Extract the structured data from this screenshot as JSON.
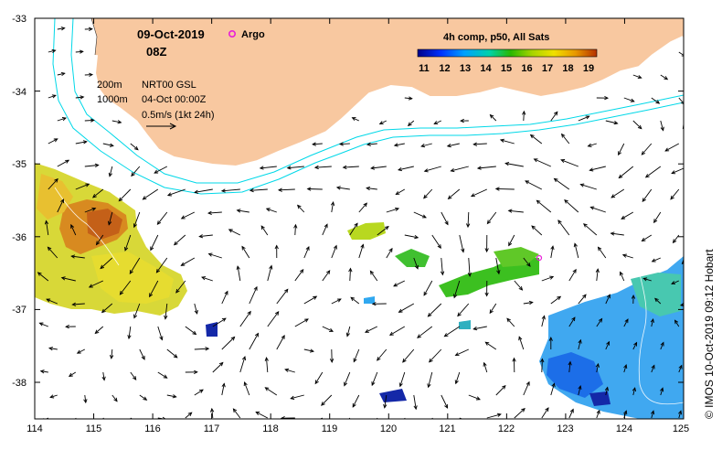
{
  "map": {
    "date": "09-Oct-2019",
    "hour": "08Z",
    "argo_label": "Argo",
    "argo_marker_color": "#e81fd8",
    "legend": {
      "title": "4h comp, p50, All Sats",
      "ticks": [
        "11",
        "12",
        "13",
        "14",
        "15",
        "16",
        "17",
        "18",
        "19"
      ],
      "sst_min": 11,
      "sst_max": 19.5,
      "colors": [
        "#00008a",
        "#0032ff",
        "#00a0ff",
        "#00d2aa",
        "#2ab800",
        "#a8d400",
        "#f0e000",
        "#e89800",
        "#b43000"
      ]
    },
    "contours": {
      "depth_200": "200m",
      "depth_1000": "1000m",
      "contour_color": "#00d8e8"
    },
    "reference": {
      "altimetry": "NRT00 GSL",
      "altimetry_date": "04-Oct 00:00Z",
      "scale_label": "0.5m/s (1kt 24h)"
    },
    "credit": "© IMOS 10-Oct-2019 09:12 Hobart",
    "land_color": "#f8c8a0",
    "axes": {
      "x_ticks": [
        "114",
        "115",
        "116",
        "117",
        "118",
        "119",
        "120",
        "121",
        "122",
        "123",
        "124",
        "125"
      ],
      "y_ticks": [
        "-33",
        "-34",
        "-35",
        "-36",
        "-37",
        "-38"
      ],
      "lon_range": [
        114,
        125
      ],
      "lat_range": [
        -38.5,
        -33
      ]
    }
  }
}
